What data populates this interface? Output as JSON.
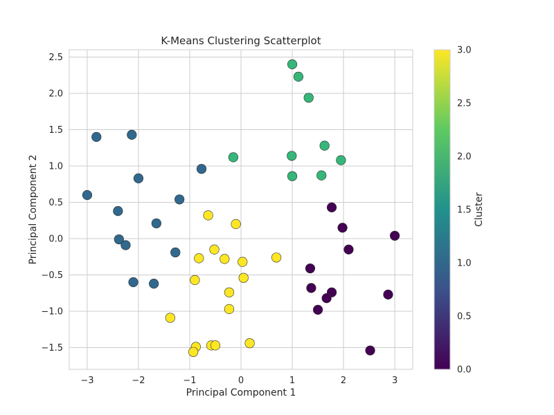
{
  "chart_data": {
    "type": "scatter",
    "title": "K-Means Clustering Scatterplot",
    "xlabel": "Principal Component 1",
    "ylabel": "Principal Component 2",
    "xlim": [
      -3.35,
      3.35
    ],
    "ylim": [
      -1.8,
      2.6
    ],
    "x_ticks": [
      -3,
      -2,
      -1,
      0,
      1,
      2,
      3
    ],
    "x_tick_labels": [
      "−3",
      "−2",
      "−1",
      "0",
      "1",
      "2",
      "3"
    ],
    "y_ticks": [
      -1.5,
      -1.0,
      -0.5,
      0.0,
      0.5,
      1.0,
      1.5,
      2.0,
      2.5
    ],
    "y_tick_labels": [
      "−1.5",
      "−1.0",
      "−0.5",
      "0.0",
      "0.5",
      "1.0",
      "1.5",
      "2.0",
      "2.5"
    ],
    "grid": true,
    "colorbar": {
      "label": "Cluster",
      "range": [
        0,
        3
      ],
      "ticks": [
        0.0,
        0.5,
        1.0,
        1.5,
        2.0,
        2.5,
        3.0
      ],
      "tick_labels": [
        "0.0",
        "0.5",
        "1.0",
        "1.5",
        "2.0",
        "2.5",
        "3.0"
      ],
      "colormap": "viridis",
      "colors": [
        "#440154",
        "#3b528b",
        "#21918c",
        "#5ec962",
        "#fde725"
      ]
    },
    "cluster_colors": {
      "0": "#440154",
      "1": "#31688e",
      "2": "#35b779",
      "3": "#fde725"
    },
    "points": [
      {
        "x": -3.0,
        "y": 0.6,
        "cluster": 1
      },
      {
        "x": -2.82,
        "y": 1.4,
        "cluster": 1
      },
      {
        "x": -2.13,
        "y": 1.43,
        "cluster": 1
      },
      {
        "x": -2.0,
        "y": 0.83,
        "cluster": 1
      },
      {
        "x": -2.4,
        "y": 0.38,
        "cluster": 1
      },
      {
        "x": -2.38,
        "y": -0.01,
        "cluster": 1
      },
      {
        "x": -2.25,
        "y": -0.09,
        "cluster": 1
      },
      {
        "x": -2.1,
        "y": -0.6,
        "cluster": 1
      },
      {
        "x": -1.7,
        "y": -0.62,
        "cluster": 1
      },
      {
        "x": -1.65,
        "y": 0.21,
        "cluster": 1
      },
      {
        "x": -1.28,
        "y": -0.19,
        "cluster": 1
      },
      {
        "x": -1.2,
        "y": 0.54,
        "cluster": 1
      },
      {
        "x": -0.77,
        "y": 0.96,
        "cluster": 1
      },
      {
        "x": 1.0,
        "y": 2.4,
        "cluster": 2
      },
      {
        "x": 1.12,
        "y": 2.23,
        "cluster": 2
      },
      {
        "x": 1.32,
        "y": 1.94,
        "cluster": 2
      },
      {
        "x": 1.63,
        "y": 1.28,
        "cluster": 2
      },
      {
        "x": 1.95,
        "y": 1.08,
        "cluster": 2
      },
      {
        "x": 0.99,
        "y": 1.14,
        "cluster": 2
      },
      {
        "x": 1.0,
        "y": 0.86,
        "cluster": 2
      },
      {
        "x": 1.57,
        "y": 0.87,
        "cluster": 2
      },
      {
        "x": -0.15,
        "y": 1.12,
        "cluster": 2
      },
      {
        "x": 1.77,
        "y": 0.43,
        "cluster": 0
      },
      {
        "x": 1.98,
        "y": 0.15,
        "cluster": 0
      },
      {
        "x": 3.0,
        "y": 0.04,
        "cluster": 0
      },
      {
        "x": 2.1,
        "y": -0.15,
        "cluster": 0
      },
      {
        "x": 1.35,
        "y": -0.41,
        "cluster": 0
      },
      {
        "x": 1.37,
        "y": -0.68,
        "cluster": 0
      },
      {
        "x": 1.77,
        "y": -0.74,
        "cluster": 0
      },
      {
        "x": 1.67,
        "y": -0.82,
        "cluster": 0
      },
      {
        "x": 1.5,
        "y": -0.98,
        "cluster": 0
      },
      {
        "x": 2.87,
        "y": -0.77,
        "cluster": 0
      },
      {
        "x": 2.52,
        "y": -1.54,
        "cluster": 0
      },
      {
        "x": -0.64,
        "y": 0.32,
        "cluster": 3
      },
      {
        "x": -0.1,
        "y": 0.2,
        "cluster": 3
      },
      {
        "x": -0.52,
        "y": -0.15,
        "cluster": 3
      },
      {
        "x": -0.82,
        "y": -0.27,
        "cluster": 3
      },
      {
        "x": -0.32,
        "y": -0.28,
        "cluster": 3
      },
      {
        "x": 0.69,
        "y": -0.26,
        "cluster": 3
      },
      {
        "x": 0.03,
        "y": -0.32,
        "cluster": 3
      },
      {
        "x": -0.9,
        "y": -0.57,
        "cluster": 3
      },
      {
        "x": 0.05,
        "y": -0.54,
        "cluster": 3
      },
      {
        "x": -0.23,
        "y": -0.74,
        "cluster": 3
      },
      {
        "x": -0.23,
        "y": -0.97,
        "cluster": 3
      },
      {
        "x": -1.38,
        "y": -1.09,
        "cluster": 3
      },
      {
        "x": 0.17,
        "y": -1.44,
        "cluster": 3
      },
      {
        "x": -0.58,
        "y": -1.47,
        "cluster": 3
      },
      {
        "x": -0.5,
        "y": -1.47,
        "cluster": 3
      },
      {
        "x": -0.88,
        "y": -1.49,
        "cluster": 3
      },
      {
        "x": -0.93,
        "y": -1.56,
        "cluster": 3
      }
    ]
  }
}
